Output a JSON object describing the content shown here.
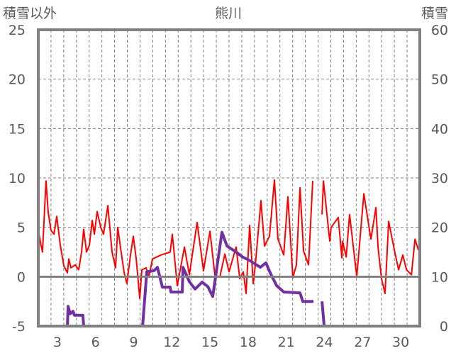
{
  "chart_data": {
    "type": "line",
    "title": "熊川",
    "ylabel_left": "積雪以外",
    "ylabel_right": "積雪",
    "xlim": [
      1.5,
      31.5
    ],
    "ylim_left": [
      -5,
      25
    ],
    "ylim_right": [
      0,
      60
    ],
    "x_ticks": [
      3,
      6,
      9,
      12,
      15,
      18,
      21,
      24,
      27,
      30
    ],
    "y_ticks_left": [
      25,
      20,
      15,
      10,
      5,
      0,
      -5
    ],
    "y_ticks_right": [
      60,
      50,
      40,
      30,
      20,
      10,
      0
    ],
    "grid": true,
    "colors": {
      "temperature": "#ff0000",
      "snow": "#7030a0",
      "axis": "#808080",
      "grid": "#808080"
    },
    "series": [
      {
        "name": "積雪以外",
        "axis": "left",
        "color": "#ff0000",
        "points": [
          [
            1.5,
            4.7
          ],
          [
            1.67,
            3.5
          ],
          [
            1.83,
            2.5
          ],
          [
            2.11,
            9.7
          ],
          [
            2.28,
            6.5
          ],
          [
            2.5,
            4.7
          ],
          [
            2.73,
            4.3
          ],
          [
            2.95,
            6.1
          ],
          [
            3.23,
            3.2
          ],
          [
            3.51,
            1.1
          ],
          [
            3.79,
            0.4
          ],
          [
            3.9,
            1.8
          ],
          [
            4.07,
            0.9
          ],
          [
            4.4,
            1.2
          ],
          [
            4.68,
            0.7
          ],
          [
            4.9,
            2.5
          ],
          [
            5.07,
            4.8
          ],
          [
            5.29,
            2.5
          ],
          [
            5.52,
            3.2
          ],
          [
            5.74,
            5.7
          ],
          [
            5.91,
            4.3
          ],
          [
            6.13,
            6.6
          ],
          [
            6.41,
            5.0
          ],
          [
            6.63,
            4.3
          ],
          [
            6.97,
            7.2
          ],
          [
            7.3,
            2.5
          ],
          [
            7.58,
            0.9
          ],
          [
            7.75,
            5.0
          ],
          [
            7.97,
            2.9
          ],
          [
            8.25,
            0.4
          ],
          [
            8.47,
            -0.7
          ],
          [
            8.75,
            2.2
          ],
          [
            8.97,
            4.1
          ],
          [
            9.2,
            1.8
          ],
          [
            9.48,
            -2.2
          ],
          [
            9.64,
            0.7
          ],
          [
            9.98,
            0.9
          ],
          [
            10.2,
            0
          ],
          [
            10.48,
            1.8
          ],
          [
            11.15,
            2.2
          ],
          [
            11.87,
            2.5
          ],
          [
            12.04,
            4.3
          ],
          [
            12.43,
            -0.9
          ],
          [
            12.99,
            3.0
          ],
          [
            13.38,
            0.2
          ],
          [
            13.99,
            5.5
          ],
          [
            14.49,
            0.6
          ],
          [
            15.0,
            4.6
          ],
          [
            15.39,
            0.1
          ],
          [
            15.78,
            0
          ],
          [
            16.17,
            2.3
          ],
          [
            16.5,
            0.5
          ],
          [
            17.06,
            3.0
          ],
          [
            17.34,
            -0.2
          ],
          [
            17.62,
            0.5
          ],
          [
            17.84,
            -1.7
          ],
          [
            18.12,
            5.2
          ],
          [
            18.4,
            -0.7
          ],
          [
            18.57,
            1.2
          ],
          [
            19.01,
            7.7
          ],
          [
            19.29,
            3.1
          ],
          [
            19.68,
            4.1
          ],
          [
            20.07,
            9.8
          ],
          [
            20.35,
            3.8
          ],
          [
            20.8,
            2.2
          ],
          [
            21.13,
            8.1
          ],
          [
            21.52,
            -0.1
          ],
          [
            21.8,
            1.2
          ],
          [
            22.08,
            9.0
          ],
          [
            22.36,
            2.6
          ],
          [
            22.75,
            1.2
          ],
          [
            23.08,
            9.7
          ],
          null,
          [
            23.81,
            6.3
          ],
          [
            23.92,
            9.7
          ],
          [
            24.42,
            3.6
          ],
          [
            24.53,
            5.0
          ],
          [
            25.09,
            6.0
          ],
          [
            25.37,
            1.9
          ],
          [
            25.43,
            3.6
          ],
          [
            25.71,
            2.0
          ],
          [
            25.98,
            6.3
          ],
          [
            26.54,
            0
          ],
          [
            27.1,
            8.4
          ],
          [
            27.32,
            6.6
          ],
          [
            27.66,
            3.8
          ],
          [
            28.05,
            7.0
          ],
          [
            28.22,
            2.9
          ],
          [
            28.49,
            -0.2
          ],
          [
            28.77,
            -1.7
          ],
          [
            29.0,
            4.3
          ],
          [
            29.05,
            5.6
          ],
          [
            29.55,
            2.4
          ],
          [
            29.83,
            0.7
          ],
          [
            30.17,
            2.2
          ],
          [
            30.45,
            0.7
          ],
          [
            30.84,
            0.2
          ],
          [
            31.12,
            3.8
          ],
          [
            31.39,
            2.7
          ]
        ]
      },
      {
        "name": "積雪",
        "axis": "right",
        "color": "#7030a0",
        "points": [
          [
            1.5,
            0
          ],
          [
            3.79,
            0
          ],
          [
            3.84,
            4.0
          ],
          [
            4.01,
            2.5
          ],
          [
            4.23,
            3.0
          ],
          [
            4.34,
            2.2
          ],
          [
            5.01,
            2.2
          ],
          [
            5.07,
            0
          ],
          [
            9.7,
            0
          ],
          [
            10.03,
            11
          ],
          [
            10.59,
            11.2
          ],
          [
            10.87,
            11.9
          ],
          [
            11.26,
            7.9
          ],
          [
            11.87,
            7.9
          ],
          [
            11.93,
            6.9
          ],
          [
            12.82,
            6.9
          ],
          [
            12.88,
            11.9
          ],
          [
            13.38,
            9
          ],
          [
            13.83,
            7.5
          ],
          [
            14.38,
            8.9
          ],
          [
            14.83,
            8
          ],
          [
            15.22,
            6
          ],
          [
            15.94,
            19
          ],
          [
            16.34,
            16.2
          ],
          [
            17.06,
            15
          ],
          [
            17.56,
            14
          ],
          [
            18.18,
            13.2
          ],
          [
            18.96,
            11.9
          ],
          [
            19.4,
            12.8
          ],
          [
            19.79,
            10.5
          ],
          [
            20.24,
            8.2
          ],
          [
            20.8,
            6.9
          ],
          [
            22.08,
            6.7
          ],
          [
            22.3,
            5.0
          ],
          [
            23.14,
            5.0
          ],
          null,
          [
            23.81,
            5.0
          ],
          [
            23.98,
            0
          ],
          [
            31.5,
            0
          ]
        ]
      }
    ]
  }
}
